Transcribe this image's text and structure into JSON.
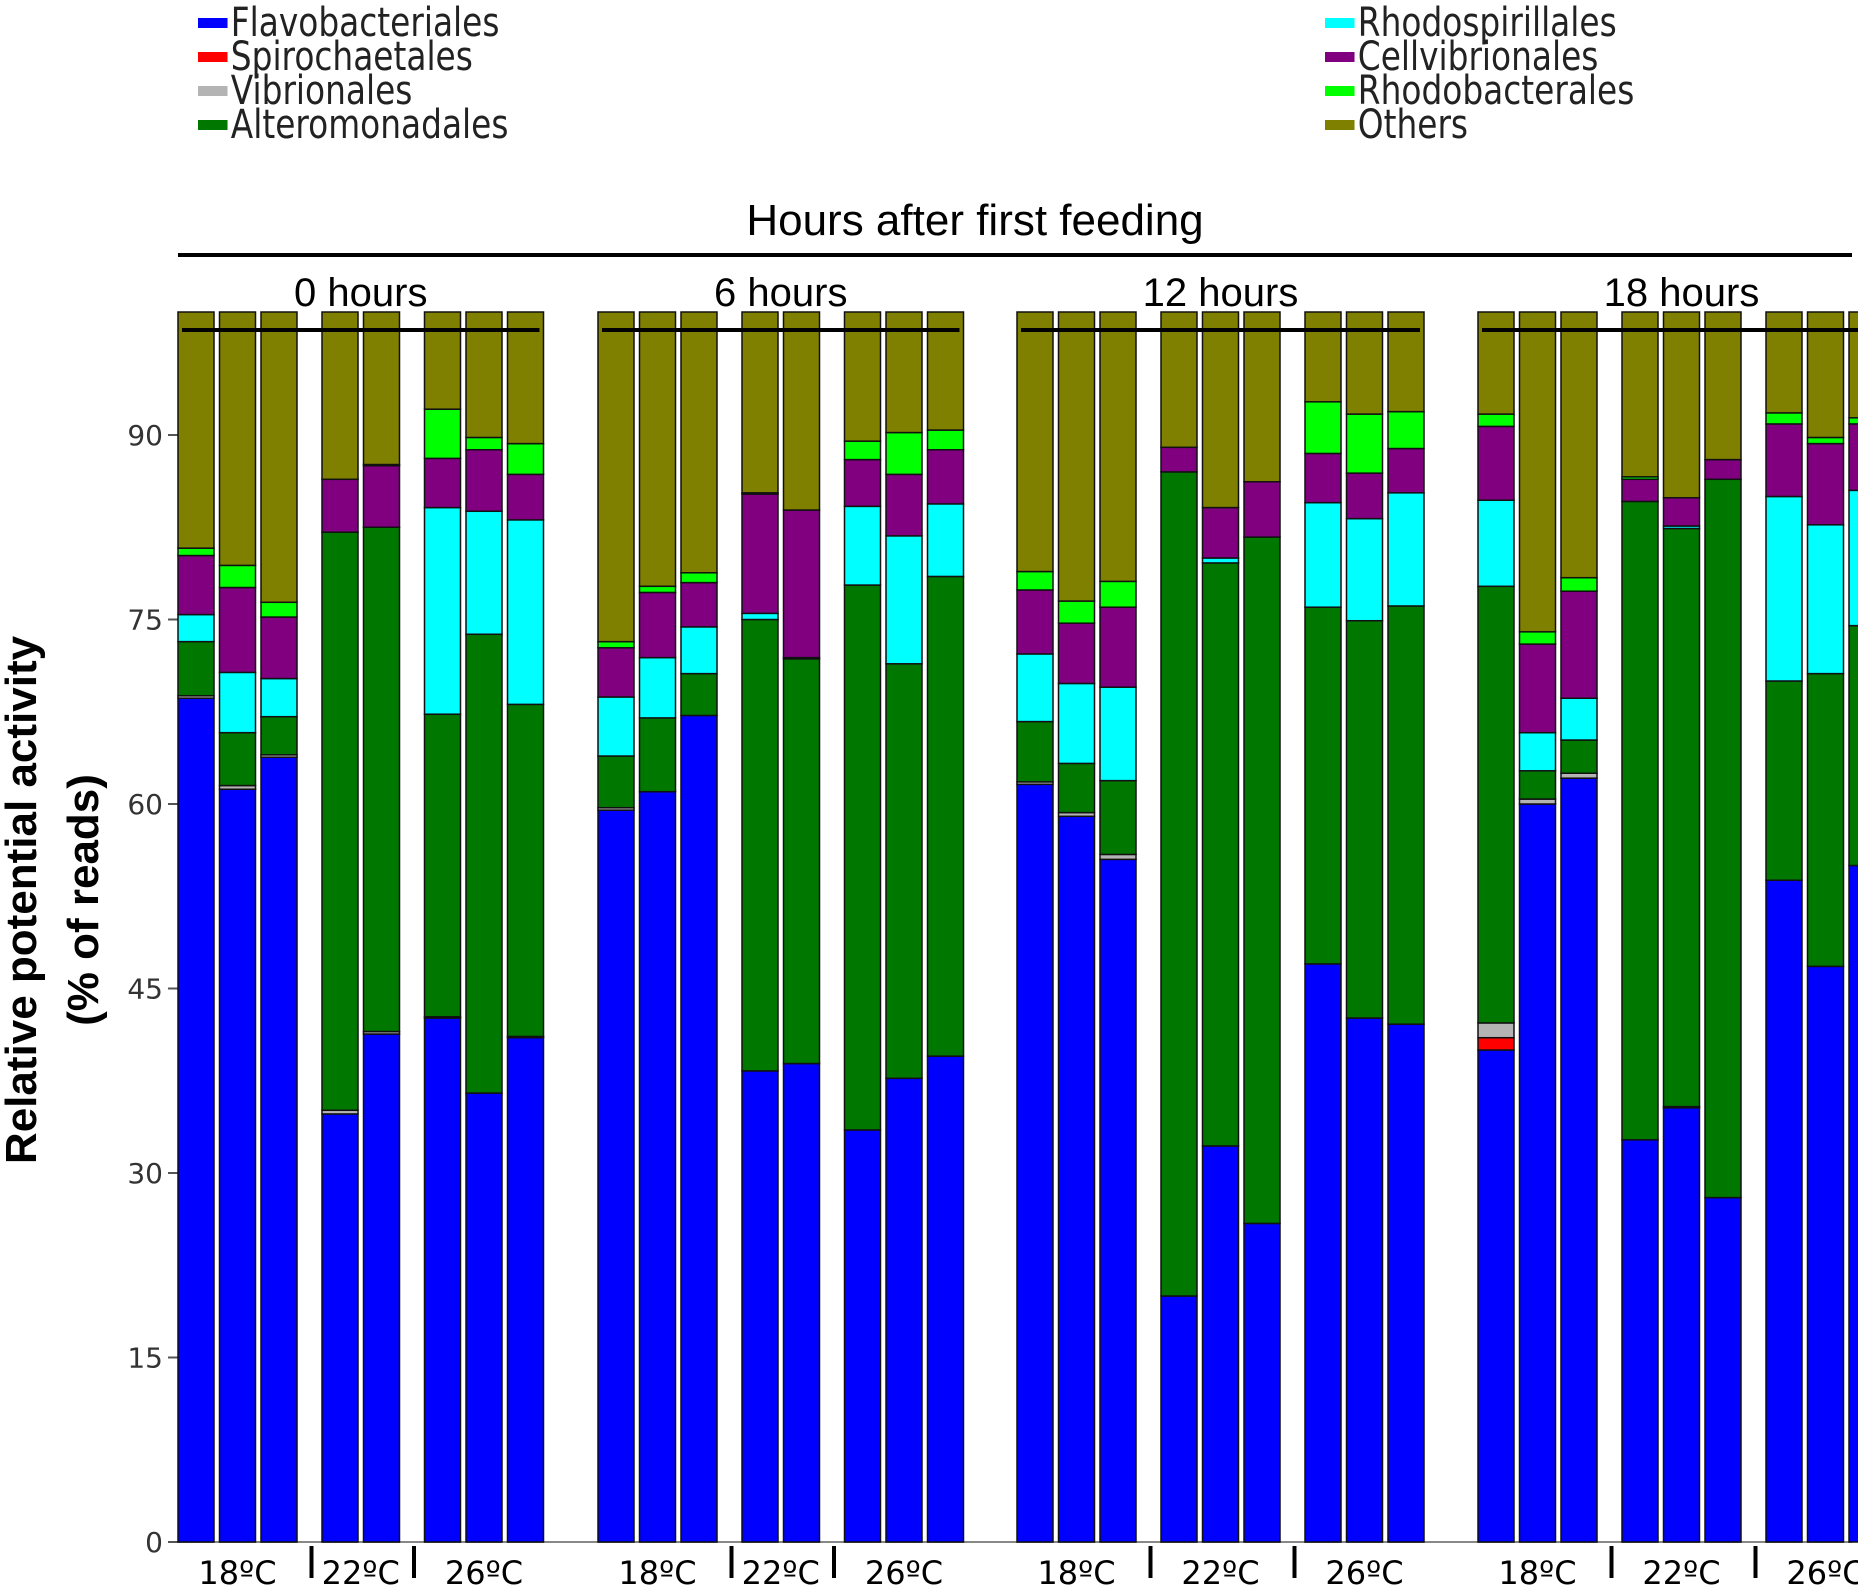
{
  "chart_data": {
    "type": "stacked-bar",
    "title": "Hours after first feeding",
    "ylabel_line1": "Relative potential activity",
    "ylabel_line2": "(% of reads)",
    "ylim": [
      0,
      100
    ],
    "yticks": [
      0,
      15,
      30,
      45,
      60,
      75,
      90
    ],
    "series": [
      {
        "name": "Flavobacteriales",
        "color": "#0000ff"
      },
      {
        "name": "Spirochaetales",
        "color": "#ff0000"
      },
      {
        "name": "Vibrionales",
        "color": "#b4b4b4"
      },
      {
        "name": "Alteromonadales",
        "color": "#007800"
      },
      {
        "name": "Rhodospirillales",
        "color": "#00ffff"
      },
      {
        "name": "Cellvibrionales",
        "color": "#800080"
      },
      {
        "name": "Rhodobacterales",
        "color": "#00ff00"
      },
      {
        "name": "Others",
        "color": "#808000"
      }
    ],
    "groups": [
      {
        "label": "0 hours",
        "temps": [
          {
            "label": "18ºC",
            "bars": [
              [
                68.6,
                0,
                0.2,
                4.4,
                2.2,
                4.8,
                0.6,
                19.2
              ],
              [
                61.2,
                0,
                0.3,
                4.3,
                4.9,
                6.9,
                1.8,
                20.6
              ],
              [
                63.8,
                0,
                0.2,
                3.1,
                3.1,
                5.0,
                1.2,
                23.6
              ]
            ]
          },
          {
            "label": "22ºC",
            "bars": [
              [
                34.8,
                0,
                0.3,
                47.0,
                0,
                4.3,
                0,
                13.6
              ],
              [
                41.3,
                0,
                0.2,
                41.0,
                0,
                5.0,
                0.1,
                12.4
              ]
            ]
          },
          {
            "label": "26ºC",
            "bars": [
              [
                42.6,
                0,
                0.1,
                24.6,
                16.8,
                4.0,
                4.0,
                7.9
              ],
              [
                36.5,
                0,
                0,
                37.3,
                10.0,
                5.0,
                1.0,
                10.2
              ],
              [
                41.0,
                0,
                0.1,
                27.0,
                15.0,
                3.7,
                2.5,
                10.7
              ]
            ]
          }
        ]
      },
      {
        "label": "6 hours",
        "temps": [
          {
            "label": "18ºC",
            "bars": [
              [
                59.5,
                0,
                0.2,
                4.2,
                4.8,
                4.0,
                0.5,
                26.8
              ],
              [
                61.0,
                0,
                0,
                6.0,
                4.9,
                5.3,
                0.5,
                22.3
              ],
              [
                67.2,
                0,
                0,
                3.4,
                3.8,
                3.6,
                0.8,
                21.2
              ]
            ]
          },
          {
            "label": "22ºC",
            "bars": [
              [
                38.3,
                0,
                0,
                36.7,
                0.5,
                9.7,
                0.1,
                14.7
              ],
              [
                38.9,
                0,
                0,
                32.9,
                0.1,
                12.0,
                0,
                16.1
              ]
            ]
          },
          {
            "label": "26ºC",
            "bars": [
              [
                33.5,
                0,
                0,
                44.3,
                6.4,
                3.8,
                1.5,
                10.5
              ],
              [
                37.7,
                0,
                0,
                33.7,
                10.4,
                5.0,
                3.4,
                9.8
              ],
              [
                39.5,
                0,
                0,
                39.0,
                5.9,
                4.4,
                1.6,
                9.6
              ]
            ]
          }
        ]
      },
      {
        "label": "12 hours",
        "temps": [
          {
            "label": "18ºC",
            "bars": [
              [
                61.6,
                0,
                0.2,
                4.9,
                5.5,
                5.2,
                1.5,
                21.1
              ],
              [
                59.0,
                0,
                0.3,
                4.0,
                6.5,
                4.9,
                1.8,
                23.5
              ],
              [
                55.5,
                0,
                0.4,
                6.0,
                7.6,
                6.5,
                2.1,
                21.9
              ]
            ]
          },
          {
            "label": "22ºC",
            "bars": [
              [
                20.0,
                0,
                0,
                67.0,
                0,
                2.0,
                0,
                11.0
              ],
              [
                32.2,
                0,
                0,
                47.4,
                0.4,
                4.1,
                0,
                15.9
              ],
              [
                25.9,
                0,
                0,
                55.8,
                0,
                4.5,
                0,
                13.8
              ]
            ]
          },
          {
            "label": "26ºC",
            "bars": [
              [
                47.0,
                0,
                0,
                29.0,
                8.5,
                4.0,
                4.2,
                7.3
              ],
              [
                42.6,
                0,
                0,
                32.3,
                8.3,
                3.7,
                4.8,
                8.3
              ],
              [
                42.1,
                0,
                0,
                34.0,
                9.2,
                3.6,
                3.0,
                8.1
              ]
            ]
          }
        ]
      },
      {
        "label": "18 hours",
        "temps": [
          {
            "label": "18ºC",
            "bars": [
              [
                40.0,
                1.0,
                1.2,
                35.5,
                7.0,
                6.0,
                1.0,
                8.3
              ],
              [
                60.0,
                0,
                0.4,
                2.3,
                3.1,
                7.2,
                1.0,
                26.0
              ],
              [
                62.1,
                0,
                0.4,
                2.7,
                3.4,
                8.7,
                1.1,
                21.6
              ]
            ]
          },
          {
            "label": "22ºC",
            "bars": [
              [
                32.7,
                0,
                0,
                51.9,
                0,
                1.8,
                0.2,
                13.4
              ],
              [
                35.3,
                0,
                0.1,
                47.0,
                0.2,
                2.3,
                0,
                15.1
              ],
              [
                28.0,
                0,
                0,
                58.4,
                0,
                1.6,
                0,
                12.0
              ]
            ]
          },
          {
            "label": "26ºC",
            "bars": [
              [
                53.8,
                0,
                0,
                16.2,
                15.0,
                5.9,
                0.9,
                8.2
              ],
              [
                46.8,
                0,
                0,
                23.8,
                12.1,
                6.6,
                0.5,
                10.2
              ],
              [
                55.0,
                0,
                0,
                19.5,
                11.0,
                5.4,
                0.5,
                8.6
              ]
            ]
          }
        ]
      }
    ]
  }
}
